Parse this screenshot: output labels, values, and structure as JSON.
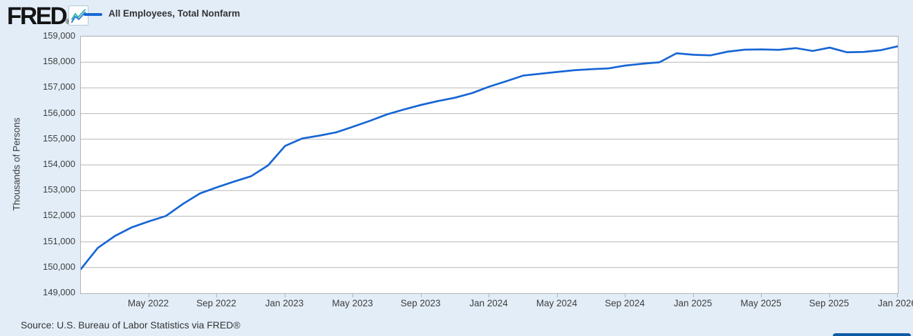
{
  "header": {
    "logo": "FRED",
    "logo_mark": "®",
    "legend": {
      "label": "All Employees, Total Nonfarm"
    }
  },
  "chart_data": {
    "type": "line",
    "title": "All Employees, Total Nonfarm",
    "ylabel": "Thousands of Persons",
    "ylim": [
      149000,
      159000
    ],
    "y_step": 1000,
    "y_tick_labels": [
      "159,000",
      "158,000",
      "157,000",
      "156,000",
      "155,000",
      "154,000",
      "153,000",
      "152,000",
      "151,000",
      "150,000",
      "149,000"
    ],
    "grid": true,
    "legend_position": "top-left",
    "x": [
      "2022-01",
      "2022-02",
      "2022-03",
      "2022-04",
      "2022-05",
      "2022-06",
      "2022-07",
      "2022-08",
      "2022-09",
      "2022-10",
      "2022-11",
      "2022-12",
      "2023-01",
      "2023-02",
      "2023-03",
      "2023-04",
      "2023-05",
      "2023-06",
      "2023-07",
      "2023-08",
      "2023-09",
      "2023-10",
      "2023-11",
      "2023-12",
      "2024-01",
      "2024-02",
      "2024-03",
      "2024-04",
      "2024-05",
      "2024-06",
      "2024-07",
      "2024-08",
      "2024-09",
      "2024-10",
      "2024-11",
      "2024-12",
      "2025-01",
      "2025-02",
      "2025-03",
      "2025-04",
      "2025-05",
      "2025-06",
      "2025-07",
      "2025-08",
      "2025-09",
      "2025-10",
      "2025-11",
      "2025-12",
      "2026-01"
    ],
    "x_ticks": [
      {
        "label": "May 2022",
        "m": 4
      },
      {
        "label": "Sep 2022",
        "m": 8
      },
      {
        "label": "Jan 2023",
        "m": 12
      },
      {
        "label": "May 2023",
        "m": 16
      },
      {
        "label": "Sep 2023",
        "m": 20
      },
      {
        "label": "Jan 2024",
        "m": 24
      },
      {
        "label": "May 2024",
        "m": 28
      },
      {
        "label": "Sep 2024",
        "m": 32
      },
      {
        "label": "Jan 2025",
        "m": 36
      },
      {
        "label": "May 2025",
        "m": 40
      },
      {
        "label": "Sep 2025",
        "m": 44
      },
      {
        "label": "Jan 2026",
        "m": 48
      }
    ],
    "series": [
      {
        "name": "All Employees, Total Nonfarm",
        "color": "#1766d4",
        "values": [
          149940,
          150770,
          151230,
          151570,
          151800,
          152010,
          152480,
          152890,
          153130,
          153350,
          153560,
          153980,
          154740,
          155030,
          155140,
          155270,
          155490,
          155720,
          155970,
          156160,
          156340,
          156490,
          156620,
          156800,
          157050,
          157260,
          157480,
          157550,
          157620,
          157690,
          157730,
          157760,
          157870,
          157940,
          158000,
          158350,
          158290,
          158270,
          158410,
          158490,
          158500,
          158480,
          158550,
          158440,
          158570,
          158390,
          158400,
          158470,
          158620
        ]
      }
    ]
  },
  "footer": {
    "source": "Source: U.S. Bureau of Labor Statistics via FRED®"
  },
  "colors": {
    "page_bg": "#e2edf8",
    "plot_bg": "#ffffff",
    "grid": "#b6b6b6",
    "plot_border": "#b0b0b0",
    "line": "#1766d4",
    "tick_mark": "#9fb6cf",
    "axis_text": "#3d3d3d",
    "bottom_bar": "#0d5aa7",
    "logo_text": "#141414",
    "icon_blue": "#2b7bd4",
    "icon_teal": "#35b5ab"
  }
}
